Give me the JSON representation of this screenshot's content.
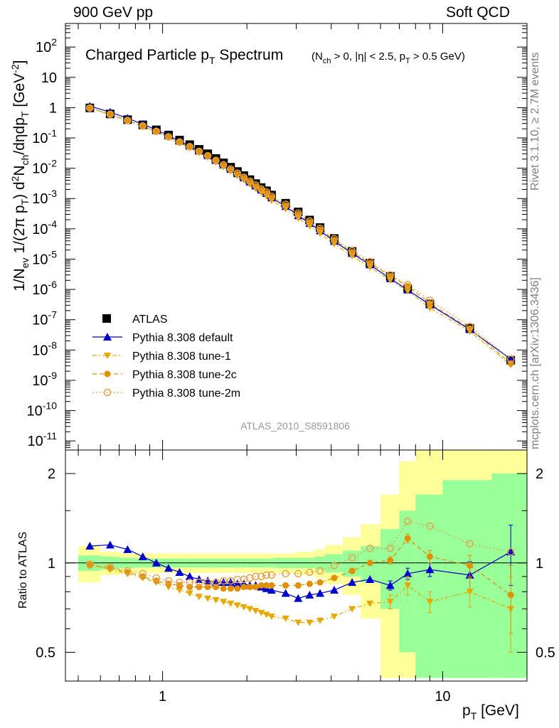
{
  "header": {
    "left": "900 GeV pp",
    "right": "Soft QCD"
  },
  "side_labels": {
    "rivet": "Rivet 3.1.10, ≥ 2.7M events",
    "mcplots": "mcplots.cern.ch [arXiv:1306.3436]"
  },
  "chart_data": {
    "type": "scatter",
    "title": "Charged Particle pT Spectrum",
    "title_main": "Charged Particle p",
    "title_sub": "T",
    "title_tail": " Spectrum",
    "cuts": "(Nch > 0, |η| < 2.5, pT > 0.5 GeV)",
    "analysis_id": "ATLAS_2010_S8591806",
    "xlabel": "pT [GeV]",
    "ylabel_main": "1/Nev 1/(2π pT) d²Nch/dηdpT [GeV⁻²]",
    "ylabel_ratio": "Ratio to ATLAS",
    "x_log": true,
    "y_log": true,
    "xlim": [
      0.45,
      20
    ],
    "ylim_main": [
      5e-12,
      600
    ],
    "ylim_ratio": [
      0.4,
      2.4
    ],
    "x_tick_labels": [
      "1",
      "10"
    ],
    "y_tick_labels_main": [
      "10^-11",
      "10^-10",
      "10^-9",
      "10^-8",
      "10^-7",
      "10^-6",
      "10^-5",
      "10^-4",
      "10^-3",
      "10^-2",
      "10^-1",
      "1",
      "10",
      "10^2"
    ],
    "ratio_tick_labels": [
      "0.5",
      "1",
      "2"
    ],
    "legend_position": "lower-left",
    "legend": [
      "ATLAS",
      "Pythia 8.308 default",
      "Pythia 8.308 tune-1",
      "Pythia 8.308 tune-2c",
      "Pythia 8.308 tune-2m"
    ],
    "x": [
      0.55,
      0.65,
      0.75,
      0.85,
      0.95,
      1.05,
      1.15,
      1.25,
      1.35,
      1.45,
      1.55,
      1.65,
      1.75,
      1.85,
      1.95,
      2.05,
      2.15,
      2.25,
      2.35,
      2.45,
      2.75,
      3.05,
      3.35,
      3.65,
      4.1,
      4.75,
      5.5,
      6.5,
      7.5,
      9.0,
      12.5,
      17.5
    ],
    "atlas": [
      0.98,
      0.62,
      0.4,
      0.27,
      0.185,
      0.125,
      0.085,
      0.06,
      0.042,
      0.03,
      0.021,
      0.015,
      0.0108,
      0.0078,
      0.0057,
      0.0042,
      0.0031,
      0.0023,
      0.0018,
      0.0013,
      0.0007,
      0.00036,
      0.000195,
      0.00011,
      4.8e-05,
      1.8e-05,
      7.4e-06,
      2.7e-06,
      1.05e-06,
      3.3e-07,
      5.2e-08,
      4.6e-09
    ],
    "series": [
      {
        "name": "Pythia 8.308 default",
        "color": "#0000cc",
        "ratio": [
          1.14,
          1.15,
          1.11,
          1.05,
          1.0,
          0.96,
          0.93,
          0.9,
          0.88,
          0.87,
          0.86,
          0.86,
          0.86,
          0.85,
          0.85,
          0.84,
          0.84,
          0.83,
          0.82,
          0.81,
          0.79,
          0.76,
          0.78,
          0.79,
          0.81,
          0.86,
          0.88,
          0.84,
          0.92,
          0.95,
          0.91,
          1.09
        ],
        "ratio_err": [
          0,
          0,
          0,
          0,
          0,
          0,
          0,
          0,
          0,
          0,
          0,
          0,
          0,
          0,
          0,
          0,
          0,
          0,
          0,
          0,
          0,
          0,
          0,
          0,
          0,
          0,
          0,
          0.03,
          0.04,
          0.05,
          0.1,
          0.25
        ]
      },
      {
        "name": "Pythia 8.308 tune-1",
        "color": "#e6a800",
        "ratio": [
          0.99,
          0.95,
          0.92,
          0.89,
          0.86,
          0.83,
          0.81,
          0.79,
          0.77,
          0.76,
          0.75,
          0.74,
          0.73,
          0.72,
          0.71,
          0.7,
          0.69,
          0.68,
          0.67,
          0.66,
          0.65,
          0.63,
          0.63,
          0.64,
          0.66,
          0.7,
          0.73,
          0.74,
          0.84,
          0.74,
          0.8,
          0.7
        ],
        "ratio_err": [
          0,
          0,
          0,
          0,
          0,
          0,
          0,
          0,
          0,
          0,
          0,
          0,
          0,
          0,
          0,
          0,
          0,
          0,
          0,
          0,
          0,
          0,
          0,
          0,
          0,
          0,
          0,
          0.04,
          0.06,
          0.06,
          0.09,
          0.2
        ]
      },
      {
        "name": "Pythia 8.308 tune-2c",
        "color": "#e09000",
        "ratio": [
          0.98,
          0.96,
          0.93,
          0.9,
          0.87,
          0.85,
          0.84,
          0.83,
          0.83,
          0.83,
          0.83,
          0.82,
          0.82,
          0.82,
          0.83,
          0.83,
          0.83,
          0.84,
          0.84,
          0.84,
          0.84,
          0.84,
          0.85,
          0.86,
          0.89,
          0.94,
          1.0,
          1.02,
          1.21,
          1.05,
          0.98,
          0.78
        ],
        "ratio_err": [
          0,
          0,
          0,
          0,
          0,
          0,
          0,
          0,
          0,
          0,
          0,
          0,
          0,
          0,
          0,
          0,
          0,
          0,
          0,
          0,
          0,
          0,
          0,
          0,
          0,
          0,
          0,
          0.03,
          0.04,
          0.05,
          0.08,
          0.2
        ]
      },
      {
        "name": "Pythia 8.308 tune-2m",
        "color": "#e6a24a",
        "ratio": [
          0.99,
          0.97,
          0.94,
          0.92,
          0.89,
          0.87,
          0.86,
          0.86,
          0.86,
          0.86,
          0.86,
          0.87,
          0.87,
          0.88,
          0.88,
          0.89,
          0.9,
          0.9,
          0.91,
          0.91,
          0.92,
          0.92,
          0.93,
          0.94,
          0.98,
          1.04,
          1.12,
          1.12,
          1.38,
          1.33,
          1.16,
          1.09
        ],
        "ratio_err": [
          0,
          0,
          0,
          0,
          0,
          0,
          0,
          0,
          0,
          0,
          0,
          0,
          0,
          0,
          0,
          0,
          0,
          0,
          0,
          0,
          0,
          0,
          0,
          0,
          0,
          0,
          0,
          0,
          0,
          0,
          0,
          0
        ]
      }
    ],
    "band_edges": [
      0.5,
      0.6,
      0.7,
      0.8,
      0.9,
      1.0,
      1.1,
      1.2,
      1.3,
      1.4,
      1.5,
      1.6,
      1.7,
      1.8,
      1.9,
      2.0,
      2.1,
      2.2,
      2.3,
      2.4,
      2.5,
      3.0,
      3.2,
      3.5,
      3.8,
      4.4,
      5.1,
      6.0,
      7.0,
      8.0,
      10.0,
      15.0,
      20.0
    ],
    "band_green_half": [
      0.06,
      0.05,
      0.04,
      0.035,
      0.035,
      0.035,
      0.035,
      0.035,
      0.035,
      0.035,
      0.035,
      0.035,
      0.035,
      0.035,
      0.035,
      0.035,
      0.035,
      0.035,
      0.035,
      0.035,
      0.04,
      0.04,
      0.04,
      0.05,
      0.07,
      0.1,
      0.14,
      0.3,
      0.5,
      0.7,
      0.9,
      1.0
    ],
    "band_yellow_half": [
      0.14,
      0.09,
      0.08,
      0.075,
      0.075,
      0.075,
      0.075,
      0.075,
      0.075,
      0.075,
      0.075,
      0.075,
      0.075,
      0.075,
      0.075,
      0.075,
      0.075,
      0.075,
      0.075,
      0.075,
      0.075,
      0.09,
      0.09,
      0.11,
      0.15,
      0.22,
      0.35,
      0.7,
      1.2,
      1.6,
      2.0,
      2.0
    ]
  }
}
